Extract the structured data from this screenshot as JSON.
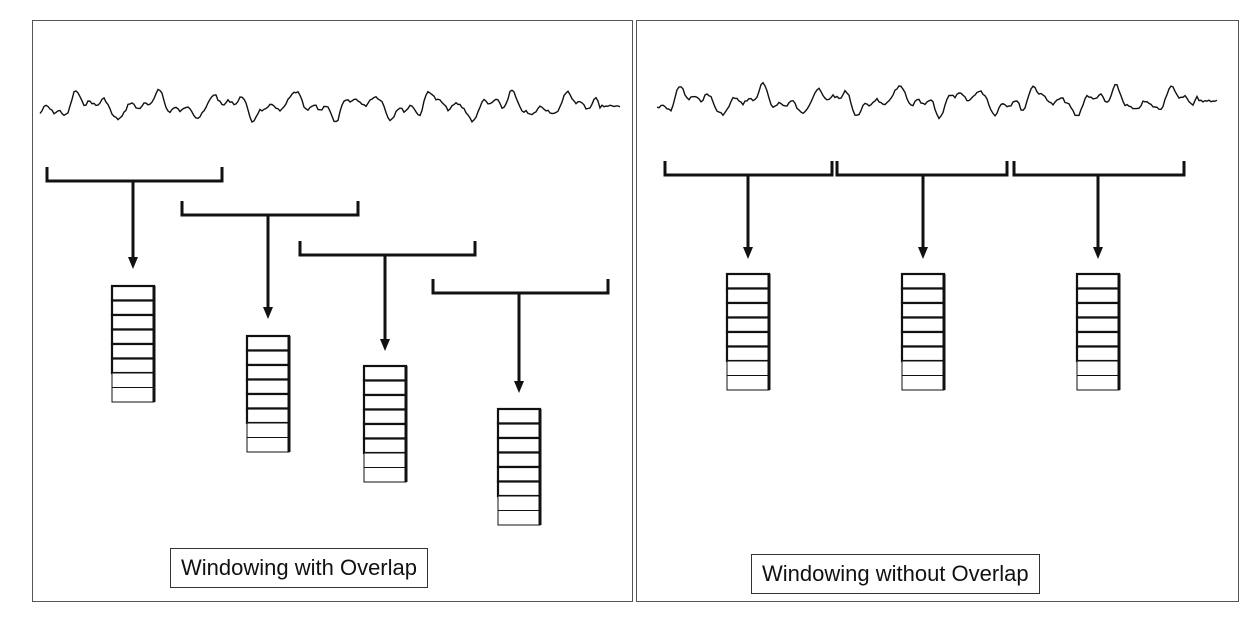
{
  "panels": {
    "left": {
      "caption": "Windowing with Overlap"
    },
    "right": {
      "caption": "Windowing without Overlap"
    }
  },
  "windows": {
    "left_count": 4,
    "right_count": 3,
    "cells_per_frame": 8,
    "filled_cells_per_frame": 6
  },
  "colors": {
    "stroke": "#111111",
    "frame": "#555555",
    "background": "#ffffff"
  }
}
